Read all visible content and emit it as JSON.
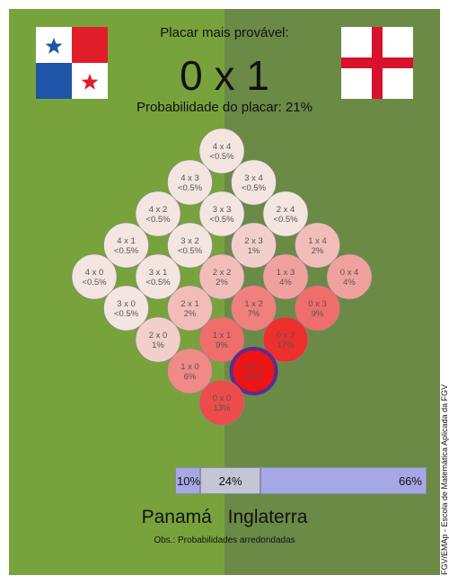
{
  "header": {
    "subtitle": "Placar mais provável:",
    "score": "0 x 1",
    "prob_label": "Probabilidade do placar: 21%"
  },
  "flags": {
    "left": "panama-flag",
    "right": "england-flag"
  },
  "teams": {
    "home": "Panamá",
    "away": "Inglaterra"
  },
  "note": "Obs.: Probabilidades arredondadas",
  "credit": "FGV/EMAp - Escola de Matemática Aplicada da FGV",
  "colors": {
    "field_left": "#78a33c",
    "field_right": "#6a8a46",
    "highlight_ring": "#5a2d91",
    "bar_win": "#a6a8e6",
    "bar_draw": "#c4c6d6"
  },
  "chart_data": {
    "type": "heatmap",
    "title": "Placar mais provável:",
    "cells": [
      {
        "panama": 4,
        "england": 4,
        "label": "4 x 4",
        "prob": "<0.5%",
        "value": 0.2
      },
      {
        "panama": 4,
        "england": 3,
        "label": "4 x 3",
        "prob": "<0.5%",
        "value": 0.2
      },
      {
        "panama": 3,
        "england": 4,
        "label": "3 x 4",
        "prob": "<0.5%",
        "value": 0.2
      },
      {
        "panama": 4,
        "england": 2,
        "label": "4 x 2",
        "prob": "<0.5%",
        "value": 0.2
      },
      {
        "panama": 3,
        "england": 3,
        "label": "3 x 3",
        "prob": "<0.5%",
        "value": 0.2
      },
      {
        "panama": 2,
        "england": 4,
        "label": "2 x 4",
        "prob": "<0.5%",
        "value": 0.2
      },
      {
        "panama": 4,
        "england": 1,
        "label": "4 x 1",
        "prob": "<0.5%",
        "value": 0.2
      },
      {
        "panama": 3,
        "england": 2,
        "label": "3 x 2",
        "prob": "<0.5%",
        "value": 0.2
      },
      {
        "panama": 2,
        "england": 3,
        "label": "2 x 3",
        "prob": "1%",
        "value": 1
      },
      {
        "panama": 1,
        "england": 4,
        "label": "1 x 4",
        "prob": "2%",
        "value": 2
      },
      {
        "panama": 4,
        "england": 0,
        "label": "4 x 0",
        "prob": "<0.5%",
        "value": 0.2
      },
      {
        "panama": 3,
        "england": 1,
        "label": "3 x 1",
        "prob": "<0.5%",
        "value": 0.2
      },
      {
        "panama": 2,
        "england": 2,
        "label": "2 x 2",
        "prob": "2%",
        "value": 2
      },
      {
        "panama": 1,
        "england": 3,
        "label": "1 x 3",
        "prob": "4%",
        "value": 4
      },
      {
        "panama": 0,
        "england": 4,
        "label": "0 x 4",
        "prob": "4%",
        "value": 4
      },
      {
        "panama": 3,
        "england": 0,
        "label": "3 x 0",
        "prob": "<0.5%",
        "value": 0.2
      },
      {
        "panama": 2,
        "england": 1,
        "label": "2 x 1",
        "prob": "2%",
        "value": 2
      },
      {
        "panama": 1,
        "england": 2,
        "label": "1 x 2",
        "prob": "7%",
        "value": 7
      },
      {
        "panama": 0,
        "england": 3,
        "label": "0 x 3",
        "prob": "9%",
        "value": 9
      },
      {
        "panama": 2,
        "england": 0,
        "label": "2 x 0",
        "prob": "1%",
        "value": 1
      },
      {
        "panama": 1,
        "england": 1,
        "label": "1 x 1",
        "prob": "9%",
        "value": 9
      },
      {
        "panama": 0,
        "england": 2,
        "label": "0 x 2",
        "prob": "17%",
        "value": 17
      },
      {
        "panama": 1,
        "england": 0,
        "label": "1 x 0",
        "prob": "6%",
        "value": 6
      },
      {
        "panama": 0,
        "england": 1,
        "label": "0 x 1",
        "prob": "21%",
        "value": 21,
        "highlight": true
      },
      {
        "panama": 0,
        "england": 0,
        "label": "0 x 0",
        "prob": "13%",
        "value": 13
      }
    ],
    "outcome_bar": [
      {
        "outcome": "panama_win",
        "label": "10%",
        "value": 10
      },
      {
        "outcome": "draw",
        "label": "24%",
        "value": 24
      },
      {
        "outcome": "england_win",
        "label": "66%",
        "value": 66
      }
    ]
  }
}
